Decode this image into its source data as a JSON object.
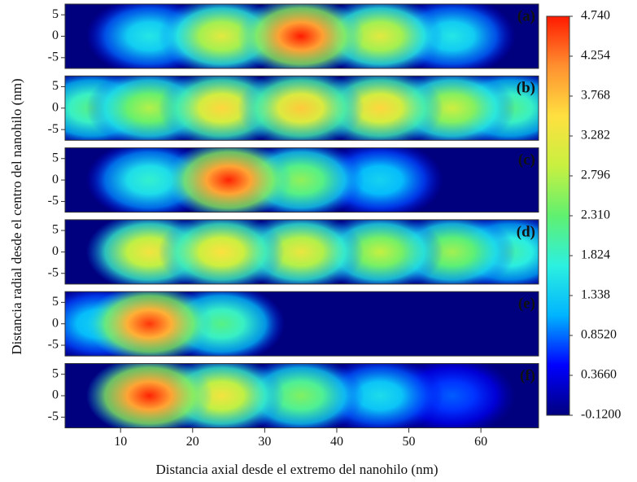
{
  "chart_data": {
    "type": "heatmap",
    "xlabel": "Distancia axial desde el extremo del nanohilo (nm)",
    "ylabel": "Distancia radial desde el centro del nanohilo (nm)",
    "xlim": [
      2.3,
      68
    ],
    "xticks": [
      10,
      20,
      30,
      40,
      50,
      60
    ],
    "ylim": [
      -7.5,
      7.5
    ],
    "yticks": [
      -5,
      0,
      5
    ],
    "clim": [
      -0.12,
      4.74
    ],
    "cticks": [
      {
        "value": -0.12,
        "label": "-0.1200"
      },
      {
        "value": 0.366,
        "label": "0.3660"
      },
      {
        "value": 0.852,
        "label": "0.8520"
      },
      1.338,
      1.824,
      {
        "value": 2.31,
        "label": "2.310"
      },
      2.796,
      3.282,
      3.768,
      4.254,
      {
        "value": 4.74,
        "label": "4.740"
      }
    ],
    "colormap": [
      "#00007f",
      "#0000ff",
      "#00b4ff",
      "#2cf0e0",
      "#60f070",
      "#c8f040",
      "#ffe040",
      "#ff9030",
      "#ff1a00"
    ],
    "panels": [
      {
        "label": "(a)",
        "peaks": [
          {
            "x": 14,
            "value": 1.6
          },
          {
            "x": 56,
            "value": 1.6
          },
          {
            "x": 24,
            "value": 3.2
          },
          {
            "x": 46,
            "value": 3.2
          },
          {
            "x": 35,
            "value": 4.74
          }
        ]
      },
      {
        "label": "(b)",
        "peaks": [
          {
            "x": 6,
            "value": 2.2
          },
          {
            "x": 64,
            "value": 2.2
          },
          {
            "x": 14,
            "value": 2.8
          },
          {
            "x": 56,
            "value": 3.0
          },
          {
            "x": 24,
            "value": 3.6
          },
          {
            "x": 46,
            "value": 3.6
          },
          {
            "x": 35,
            "value": 3.7
          }
        ]
      },
      {
        "label": "(c)",
        "peaks": [
          {
            "x": 46,
            "value": 1.4
          },
          {
            "x": 14,
            "value": 1.8
          },
          {
            "x": 35,
            "value": 2.6
          },
          {
            "x": 25,
            "value": 4.7
          }
        ]
      },
      {
        "label": "(d)",
        "peaks": [
          {
            "x": 64,
            "value": 2.0
          },
          {
            "x": 56,
            "value": 2.7
          },
          {
            "x": 46,
            "value": 2.9
          },
          {
            "x": 35,
            "value": 3.3
          },
          {
            "x": 14,
            "value": 3.4
          },
          {
            "x": 24,
            "value": 3.5
          }
        ]
      },
      {
        "label": "(e)",
        "peaks": [
          {
            "x": 7,
            "value": 1.4
          },
          {
            "x": 24,
            "value": 2.2
          },
          {
            "x": 14,
            "value": 4.6
          }
        ]
      },
      {
        "label": "(f)",
        "peaks": [
          {
            "x": 56,
            "value": 0.8
          },
          {
            "x": 46,
            "value": 1.5
          },
          {
            "x": 35,
            "value": 2.5
          },
          {
            "x": 24,
            "value": 3.4
          },
          {
            "x": 14,
            "value": 4.7
          }
        ]
      }
    ]
  }
}
